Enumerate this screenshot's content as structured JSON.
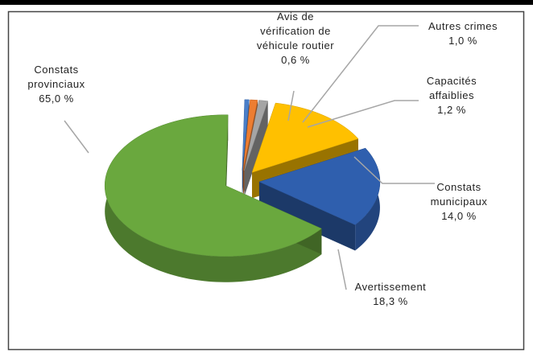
{
  "chart_data": {
    "type": "pie3d",
    "categories": [
      "Avis de vérification de véhicule routier",
      "Autres crimes",
      "Capacités affaiblies",
      "Constats municipaux",
      "Avertissement",
      "Constats provinciaux"
    ],
    "values": [
      0.6,
      1.0,
      1.2,
      14.0,
      18.3,
      65.0
    ],
    "value_labels": [
      "0,6 %",
      "1,0 %",
      "1,2 %",
      "14,0 %",
      "18,3 %",
      "65,0 %"
    ],
    "colors": [
      "#4a7fc9",
      "#ed7d31",
      "#a5a5a5",
      "#ffc000",
      "#2f5fae",
      "#6aa83e"
    ]
  }
}
